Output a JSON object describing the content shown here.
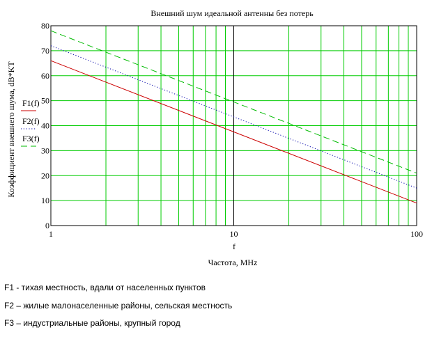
{
  "chart_data": {
    "type": "line",
    "title": "Внешний шум идеальной антенны без потерь",
    "xlabel_symbol": "f",
    "xlabel": "Частота, MHz",
    "ylabel": "Коэффициент внешнего шума, dB*KT",
    "xscale": "log",
    "xlim": [
      1,
      100
    ],
    "ylim": [
      0,
      80
    ],
    "x_ticks": [
      "1",
      "10",
      "100"
    ],
    "y_ticks": [
      "0",
      "10",
      "20",
      "30",
      "40",
      "50",
      "60",
      "70",
      "80"
    ],
    "grid": true,
    "legend_position": "left of plot",
    "series": [
      {
        "name": "F1(f)",
        "x": [
          1,
          100
        ],
        "y": [
          66,
          9
        ],
        "color": "#cc0000",
        "dash": "solid"
      },
      {
        "name": "F2(f)",
        "x": [
          1,
          100
        ],
        "y": [
          72,
          15
        ],
        "color": "#0000aa",
        "dash": "dotted"
      },
      {
        "name": "F3(f)",
        "x": [
          1,
          100
        ],
        "y": [
          78,
          21
        ],
        "color": "#00bb00",
        "dash": "dashed"
      }
    ],
    "colors": {
      "grid": "#00cc00",
      "axis": "#000000",
      "plot_border": "#000000"
    }
  },
  "notes": [
    "F1 - тихая местность, вдали от населенных пунктов",
    "F2  –  жилые малонаселенные районы, сельская местность",
    "F3  –  индустриальные районы, крупный город"
  ]
}
